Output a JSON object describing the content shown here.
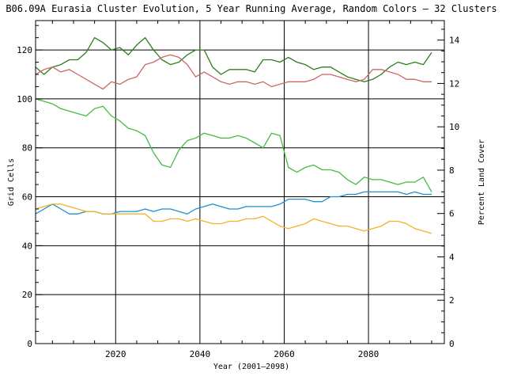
{
  "chart_data": {
    "type": "line",
    "title": "B06.09A Eurasia Cluster Evolution, 5 Year Running Average, Random Colors – 32 Clusters",
    "xlabel": "Year (2001–2098)",
    "ylabel": "Grid Cells",
    "y2label": "Percent Land Cover",
    "xlim": [
      2001,
      2098
    ],
    "ylim": [
      0,
      132
    ],
    "y2lim": [
      0,
      14.9
    ],
    "x_ticks": [
      "2020",
      "2040",
      "2060",
      "2080"
    ],
    "y_ticks": [
      "0",
      "20",
      "40",
      "60",
      "80",
      "100",
      "120"
    ],
    "y2_ticks": [
      "0",
      "2",
      "4",
      "6",
      "8",
      "10",
      "12",
      "14"
    ],
    "grid": true,
    "x": [
      2001,
      2003,
      2005,
      2007,
      2009,
      2011,
      2013,
      2015,
      2017,
      2019,
      2021,
      2023,
      2025,
      2027,
      2029,
      2031,
      2033,
      2035,
      2037,
      2039,
      2041,
      2043,
      2045,
      2047,
      2049,
      2051,
      2053,
      2055,
      2057,
      2059,
      2061,
      2063,
      2065,
      2067,
      2069,
      2071,
      2073,
      2075,
      2077,
      2079,
      2081,
      2083,
      2085,
      2087,
      2089,
      2091,
      2093,
      2095
    ],
    "series": [
      {
        "color": "#2e7d1c",
        "values": [
          113,
          110,
          113,
          114,
          116,
          116,
          119,
          125,
          123,
          120,
          121,
          118,
          122,
          125,
          120,
          116,
          114,
          115,
          118,
          120,
          120,
          113,
          110,
          112,
          112,
          112,
          111,
          116,
          116,
          115,
          117,
          115,
          114,
          112,
          113,
          113,
          111,
          109,
          108,
          107,
          108,
          110,
          113,
          115,
          114,
          115,
          114,
          119
        ]
      },
      {
        "color": "#cc6666",
        "values": [
          110,
          112,
          113,
          111,
          112,
          110,
          108,
          106,
          104,
          107,
          106,
          108,
          109,
          114,
          115,
          117,
          118,
          117,
          114,
          109,
          111,
          109,
          107,
          106,
          107,
          107,
          106,
          107,
          105,
          106,
          107,
          107,
          107,
          108,
          110,
          110,
          109,
          108,
          107,
          108,
          112,
          112,
          111,
          110,
          108,
          108,
          107,
          107
        ]
      },
      {
        "color": "#44bb44",
        "values": [
          100,
          99,
          98,
          96,
          95,
          94,
          93,
          96,
          97,
          93,
          91,
          88,
          87,
          85,
          78,
          73,
          72,
          79,
          83,
          84,
          86,
          85,
          84,
          84,
          85,
          84,
          82,
          80,
          86,
          85,
          72,
          70,
          72,
          73,
          71,
          71,
          70,
          67,
          65,
          68,
          67,
          67,
          66,
          65,
          66,
          66,
          68,
          62
        ]
      },
      {
        "color": "#1e90cc",
        "values": [
          53,
          55,
          57,
          55,
          53,
          53,
          54,
          54,
          53,
          53,
          54,
          54,
          54,
          55,
          54,
          55,
          55,
          54,
          53,
          55,
          56,
          57,
          56,
          55,
          55,
          56,
          56,
          56,
          56,
          57,
          59,
          59,
          59,
          58,
          58,
          60,
          60,
          61,
          61,
          62,
          62,
          62,
          62,
          62,
          61,
          62,
          61,
          61
        ]
      },
      {
        "color": "#f0b428",
        "values": [
          55,
          56,
          57,
          57,
          56,
          55,
          54,
          54,
          53,
          53,
          53,
          53,
          53,
          53,
          50,
          50,
          51,
          51,
          50,
          51,
          50,
          49,
          49,
          50,
          50,
          51,
          51,
          52,
          50,
          48,
          47,
          48,
          49,
          51,
          50,
          49,
          48,
          48,
          47,
          46,
          47,
          48,
          50,
          50,
          49,
          47,
          46,
          45
        ]
      }
    ]
  }
}
